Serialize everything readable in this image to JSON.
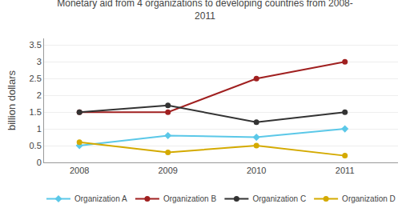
{
  "chart_data": {
    "type": "line",
    "title": "Monetary aid from 4 organizations to developing countries from 2008-\n2011",
    "ylabel": "billion dollars",
    "x": [
      2008,
      2009,
      2010,
      2011
    ],
    "series": [
      {
        "name": "Organization A",
        "values": [
          0.5,
          0.8,
          0.75,
          1.0
        ],
        "color": "#5bc8e8",
        "marker": "diamond"
      },
      {
        "name": "Organization B",
        "values": [
          1.5,
          1.5,
          2.5,
          3.0
        ],
        "color": "#a02020",
        "marker": "circle"
      },
      {
        "name": "Organization C",
        "values": [
          1.5,
          1.7,
          1.2,
          1.5
        ],
        "color": "#333333",
        "marker": "circle"
      },
      {
        "name": "Organization D",
        "values": [
          0.6,
          0.3,
          0.5,
          0.2
        ],
        "color": "#d4aa00",
        "marker": "circle"
      }
    ],
    "xlim": [
      2007.6,
      2011.6
    ],
    "xticks": [
      2008,
      2009,
      2010,
      2011
    ],
    "ylim": [
      0,
      3.7
    ],
    "yticks": [
      0,
      0.5,
      1,
      1.5,
      2,
      2.5,
      3,
      3.5
    ],
    "grid": true,
    "legend": "bottom"
  }
}
